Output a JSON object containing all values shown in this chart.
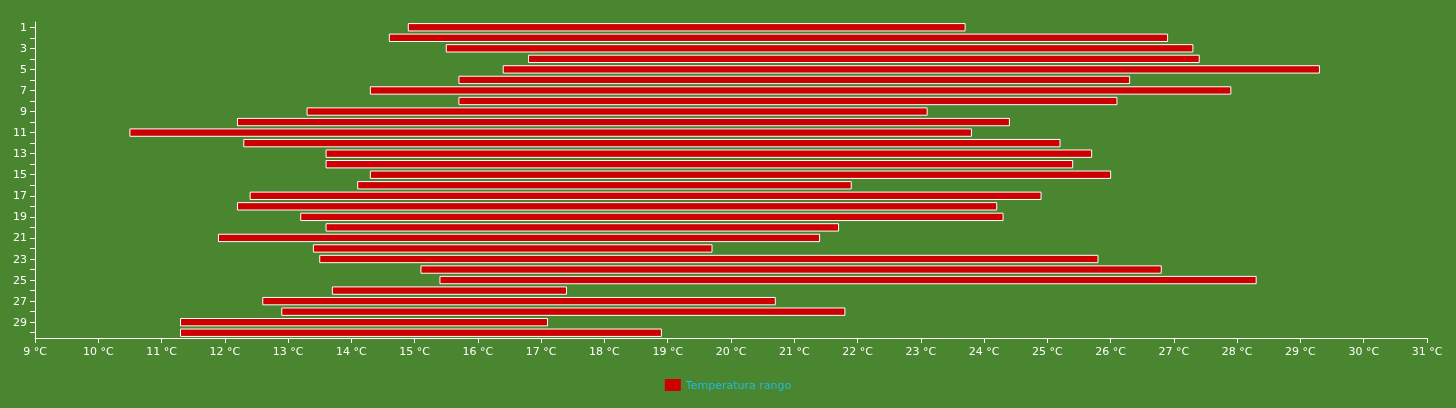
{
  "chart_data": {
    "type": "bar",
    "orientation": "horizontal",
    "categories": [
      "1",
      null,
      "3",
      null,
      "5",
      null,
      "7",
      null,
      "9",
      null,
      "11",
      null,
      "13",
      null,
      "15",
      null,
      "17",
      null,
      "19",
      null,
      "21",
      null,
      "23",
      null,
      "25",
      null,
      "27",
      null,
      "29",
      null
    ],
    "series": [
      {
        "name": "Temperatura rango",
        "color": "#cc0000",
        "base": [
          14.9,
          14.6,
          15.5,
          16.8,
          16.4,
          15.7,
          14.3,
          15.7,
          13.3,
          12.2,
          10.5,
          12.3,
          13.6,
          13.6,
          14.3,
          14.1,
          12.4,
          12.2,
          13.2,
          13.6,
          11.9,
          13.4,
          13.5,
          15.1,
          15.4,
          13.7,
          12.6,
          12.9,
          11.3,
          11.3
        ],
        "values": [
          8.8,
          12.3,
          11.8,
          10.6,
          12.9,
          10.6,
          13.6,
          10.4,
          9.8,
          12.2,
          13.3,
          12.9,
          12.1,
          11.8,
          11.7,
          7.8,
          12.5,
          12.0,
          11.1,
          8.1,
          9.5,
          6.3,
          12.3,
          11.7,
          12.9,
          3.7,
          8.1,
          8.9,
          5.8,
          7.6
        ]
      }
    ],
    "xlim": [
      9,
      31
    ],
    "xticks": [
      {
        "value": 9,
        "label": "9 °C"
      },
      {
        "value": 10,
        "label": "10 °C"
      },
      {
        "value": 11,
        "label": "11 °C"
      },
      {
        "value": 12,
        "label": "12 °C"
      },
      {
        "value": 13,
        "label": "13 °C"
      },
      {
        "value": 14,
        "label": "14 °C"
      },
      {
        "value": 15,
        "label": "15 °C"
      },
      {
        "value": 16,
        "label": "16 °C"
      },
      {
        "value": 17,
        "label": "17 °C"
      },
      {
        "value": 18,
        "label": "18 °C"
      },
      {
        "value": 19,
        "label": "19 °C"
      },
      {
        "value": 20,
        "label": "20 °C"
      },
      {
        "value": 21,
        "label": "21 °C"
      },
      {
        "value": 22,
        "label": "22 °C"
      },
      {
        "value": 23,
        "label": "23 °C"
      },
      {
        "value": 24,
        "label": "24 °C"
      },
      {
        "value": 25,
        "label": "25 °C"
      },
      {
        "value": 26,
        "label": "26 °C"
      },
      {
        "value": 27,
        "label": "27 °C"
      },
      {
        "value": 28,
        "label": "28 °C"
      },
      {
        "value": 29,
        "label": "29 °C"
      },
      {
        "value": 30,
        "label": "30 °C"
      },
      {
        "value": 31,
        "label": "31 °C"
      }
    ],
    "grid": false,
    "legend": "bottom"
  }
}
